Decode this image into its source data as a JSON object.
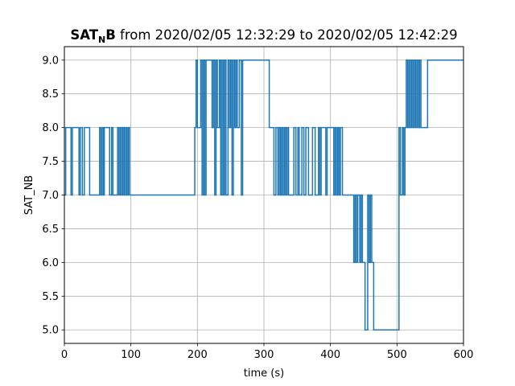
{
  "chart_data": {
    "type": "line",
    "title": {
      "bold_main": "SAT",
      "bold_sub": "N",
      "bold_tail": "B",
      "rest": " from 2020/02/05 12:32:29 to 2020/02/05 12:42:29"
    },
    "xlabel": "time (s)",
    "ylabel": "SAT_NB",
    "xlim": [
      0,
      600
    ],
    "ylim": [
      4.8,
      9.2
    ],
    "xticks": [
      0,
      100,
      200,
      300,
      400,
      500,
      600
    ],
    "xtick_labels": [
      "0",
      "100",
      "200",
      "300",
      "400",
      "500",
      "600"
    ],
    "yticks": [
      5.0,
      5.5,
      6.0,
      6.5,
      7.0,
      7.5,
      8.0,
      8.5,
      9.0
    ],
    "ytick_labels": [
      "5.0",
      "5.5",
      "6.0",
      "6.5",
      "7.0",
      "7.5",
      "8.0",
      "8.5",
      "9.0"
    ],
    "grid": true,
    "step": "post",
    "series_color": "#1f77b4",
    "series": [
      {
        "x": [
          0,
          2,
          10,
          12,
          22,
          24,
          27,
          30,
          38,
          53,
          55,
          57,
          59,
          60,
          68,
          71,
          73,
          80,
          82,
          84,
          86,
          88,
          90,
          92,
          94,
          96,
          98,
          166,
          196,
          198,
          200,
          205,
          207,
          209,
          211,
          213,
          222,
          224,
          226,
          228,
          230,
          233,
          235,
          237,
          239,
          241,
          243,
          246,
          248,
          250,
          252,
          254,
          256,
          258,
          260,
          263,
          266,
          268,
          283,
          285,
          288,
          291,
          293,
          295,
          297,
          299,
          301,
          304,
          306,
          308,
          312,
          315,
          318,
          321,
          323,
          325,
          327,
          329,
          331,
          333,
          335,
          337,
          345,
          348,
          351,
          353,
          357,
          360,
          363,
          367,
          373,
          377,
          382,
          384,
          386,
          393,
          395,
          405,
          407,
          409,
          411,
          413,
          415,
          418,
          435,
          437,
          439,
          441,
          444,
          446,
          448,
          452,
          456,
          458,
          460,
          462,
          465,
          503,
          505,
          508,
          510,
          512,
          514,
          516,
          518,
          520,
          522,
          524,
          526,
          528,
          530,
          532,
          534,
          536,
          546,
          548,
          600
        ],
        "y": [
          7,
          8,
          7,
          8,
          7,
          8,
          7,
          8,
          7,
          8,
          7,
          8,
          7,
          8,
          7,
          8,
          7,
          8,
          7,
          8,
          7,
          8,
          7,
          8,
          7,
          8,
          7,
          7,
          8,
          9,
          8,
          9,
          7,
          9,
          7,
          9,
          8,
          9,
          7,
          9,
          8,
          9,
          7,
          9,
          7,
          9,
          7,
          9,
          8,
          9,
          7,
          9,
          8,
          9,
          8,
          9,
          7,
          9,
          9,
          9,
          9,
          9,
          9,
          9,
          9,
          9,
          9,
          9,
          9,
          8,
          8,
          7,
          8,
          7,
          8,
          7,
          8,
          7,
          8,
          7,
          8,
          7,
          8,
          7,
          8,
          7,
          8,
          7,
          8,
          7,
          8,
          7,
          8,
          7,
          8,
          7,
          8,
          7,
          8,
          7,
          8,
          7,
          8,
          7,
          6,
          7,
          6,
          7,
          6,
          7,
          6,
          5,
          7,
          6,
          7,
          6,
          5,
          8,
          7,
          8,
          7,
          8,
          9,
          8,
          9,
          8,
          9,
          8,
          9,
          8,
          9,
          8,
          9,
          8,
          9,
          9,
          9
        ]
      }
    ]
  }
}
